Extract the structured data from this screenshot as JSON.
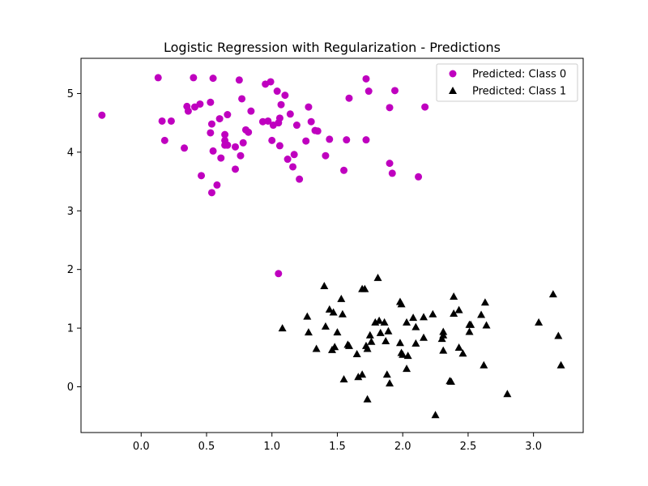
{
  "chart_data": {
    "type": "scatter",
    "title": "Logistic Regression with Regularization - Predictions",
    "xlabel": "",
    "ylabel": "",
    "xlim": [
      -0.46,
      3.38
    ],
    "ylim": [
      -0.78,
      5.6
    ],
    "xticks": [
      0.0,
      0.5,
      1.0,
      1.5,
      2.0,
      2.5,
      3.0
    ],
    "xtick_labels": [
      "0.0",
      "0.5",
      "1.0",
      "1.5",
      "2.0",
      "2.5",
      "3.0"
    ],
    "yticks": [
      0,
      1,
      2,
      3,
      4,
      5
    ],
    "ytick_labels": [
      "0",
      "1",
      "2",
      "3",
      "4",
      "5"
    ],
    "grid": false,
    "legend_position": "top-right",
    "series": [
      {
        "name": "Predicted: Class 0",
        "marker": "circle",
        "color": "#bf00bf",
        "points": [
          [
            -0.3,
            4.63
          ],
          [
            0.13,
            5.27
          ],
          [
            0.16,
            4.53
          ],
          [
            0.18,
            4.2
          ],
          [
            0.23,
            4.53
          ],
          [
            0.33,
            4.07
          ],
          [
            0.35,
            4.78
          ],
          [
            0.36,
            4.7
          ],
          [
            0.4,
            5.27
          ],
          [
            0.41,
            4.77
          ],
          [
            0.45,
            4.82
          ],
          [
            0.46,
            3.6
          ],
          [
            0.53,
            4.85
          ],
          [
            0.53,
            4.33
          ],
          [
            0.54,
            4.48
          ],
          [
            0.54,
            3.31
          ],
          [
            0.55,
            5.26
          ],
          [
            0.55,
            4.02
          ],
          [
            0.58,
            3.44
          ],
          [
            0.6,
            4.57
          ],
          [
            0.61,
            3.9
          ],
          [
            0.64,
            4.3
          ],
          [
            0.64,
            4.2
          ],
          [
            0.64,
            4.12
          ],
          [
            0.66,
            4.64
          ],
          [
            0.66,
            4.12
          ],
          [
            0.72,
            4.09
          ],
          [
            0.72,
            3.71
          ],
          [
            0.75,
            5.23
          ],
          [
            0.76,
            3.94
          ],
          [
            0.77,
            4.91
          ],
          [
            0.78,
            4.16
          ],
          [
            0.8,
            4.38
          ],
          [
            0.82,
            4.34
          ],
          [
            0.84,
            4.7
          ],
          [
            0.93,
            4.52
          ],
          [
            0.95,
            5.16
          ],
          [
            0.97,
            4.53
          ],
          [
            0.99,
            5.2
          ],
          [
            1.0,
            4.2
          ],
          [
            1.01,
            4.46
          ],
          [
            1.04,
            5.04
          ],
          [
            1.05,
            4.5
          ],
          [
            1.06,
            4.58
          ],
          [
            1.07,
            4.81
          ],
          [
            1.06,
            4.11
          ],
          [
            1.1,
            4.97
          ],
          [
            1.12,
            3.88
          ],
          [
            1.14,
            4.65
          ],
          [
            1.16,
            3.75
          ],
          [
            1.17,
            3.96
          ],
          [
            1.19,
            4.46
          ],
          [
            1.21,
            3.54
          ],
          [
            1.26,
            4.19
          ],
          [
            1.28,
            4.77
          ],
          [
            1.3,
            4.52
          ],
          [
            1.33,
            4.37
          ],
          [
            1.35,
            4.36
          ],
          [
            1.41,
            3.94
          ],
          [
            1.44,
            4.22
          ],
          [
            1.55,
            3.69
          ],
          [
            1.57,
            4.21
          ],
          [
            1.59,
            4.92
          ],
          [
            1.72,
            5.25
          ],
          [
            1.72,
            4.21
          ],
          [
            1.74,
            5.04
          ],
          [
            1.9,
            4.76
          ],
          [
            1.9,
            3.81
          ],
          [
            1.92,
            3.64
          ],
          [
            1.94,
            5.05
          ],
          [
            2.12,
            3.58
          ],
          [
            2.17,
            4.77
          ],
          [
            1.05,
            1.93
          ]
        ]
      },
      {
        "name": "Predicted: Class 1",
        "marker": "triangle",
        "color": "#000000",
        "points": [
          [
            1.08,
            1.0
          ],
          [
            1.27,
            1.2
          ],
          [
            1.28,
            0.93
          ],
          [
            1.34,
            0.65
          ],
          [
            1.4,
            1.72
          ],
          [
            1.41,
            1.03
          ],
          [
            1.44,
            1.32
          ],
          [
            1.46,
            0.63
          ],
          [
            1.47,
            1.27
          ],
          [
            1.48,
            0.68
          ],
          [
            1.5,
            0.93
          ],
          [
            1.53,
            1.5
          ],
          [
            1.54,
            1.24
          ],
          [
            1.55,
            0.13
          ],
          [
            1.58,
            0.72
          ],
          [
            1.59,
            0.7
          ],
          [
            1.65,
            0.56
          ],
          [
            1.66,
            0.17
          ],
          [
            1.69,
            1.67
          ],
          [
            1.69,
            0.21
          ],
          [
            1.71,
            1.67
          ],
          [
            1.72,
            0.7
          ],
          [
            1.73,
            0.65
          ],
          [
            1.73,
            -0.21
          ],
          [
            1.75,
            0.88
          ],
          [
            1.76,
            0.77
          ],
          [
            1.79,
            1.1
          ],
          [
            1.81,
            1.86
          ],
          [
            1.82,
            1.13
          ],
          [
            1.83,
            0.92
          ],
          [
            1.86,
            1.1
          ],
          [
            1.87,
            0.78
          ],
          [
            1.88,
            0.21
          ],
          [
            1.89,
            0.95
          ],
          [
            1.9,
            0.06
          ],
          [
            1.98,
            1.45
          ],
          [
            1.98,
            0.75
          ],
          [
            1.99,
            1.41
          ],
          [
            1.99,
            0.58
          ],
          [
            2.0,
            0.55
          ],
          [
            2.03,
            0.31
          ],
          [
            2.03,
            1.1
          ],
          [
            2.04,
            0.53
          ],
          [
            2.08,
            1.18
          ],
          [
            2.1,
            1.02
          ],
          [
            2.1,
            0.74
          ],
          [
            2.16,
            1.19
          ],
          [
            2.16,
            0.84
          ],
          [
            2.23,
            1.24
          ],
          [
            2.25,
            -0.48
          ],
          [
            2.3,
            0.82
          ],
          [
            2.31,
            0.88
          ],
          [
            2.31,
            0.94
          ],
          [
            2.31,
            0.62
          ],
          [
            2.36,
            0.1
          ],
          [
            2.37,
            0.09
          ],
          [
            2.39,
            1.54
          ],
          [
            2.39,
            1.25
          ],
          [
            2.43,
            1.31
          ],
          [
            2.43,
            0.67
          ],
          [
            2.46,
            0.57
          ],
          [
            2.51,
            1.06
          ],
          [
            2.51,
            0.94
          ],
          [
            2.52,
            1.06
          ],
          [
            2.6,
            1.23
          ],
          [
            2.62,
            0.37
          ],
          [
            2.63,
            1.44
          ],
          [
            2.64,
            1.05
          ],
          [
            2.8,
            -0.12
          ],
          [
            3.04,
            1.1
          ],
          [
            3.15,
            1.58
          ],
          [
            3.19,
            0.87
          ],
          [
            3.21,
            0.37
          ]
        ]
      }
    ]
  }
}
